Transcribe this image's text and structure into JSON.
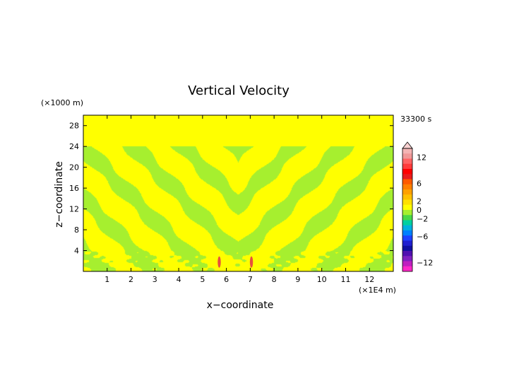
{
  "chart_data": {
    "type": "heatmap",
    "title": "Vertical Velocity",
    "xlabel": "x−coordinate",
    "ylabel": "z−coordinate",
    "x_unit": "(×1E4 m)",
    "y_unit": "(×1000 m)",
    "time_label": "33300 s",
    "xlim": [
      0,
      13
    ],
    "ylim": [
      0,
      30
    ],
    "x_ticks": [
      1,
      2,
      3,
      4,
      5,
      6,
      7,
      8,
      9,
      10,
      11,
      12
    ],
    "y_ticks": [
      4,
      8,
      12,
      16,
      20,
      24,
      28
    ],
    "colorbar": {
      "labels": [
        "12",
        "6",
        "2",
        "0",
        "−2",
        "−6",
        "−12"
      ],
      "label_values": [
        12,
        6,
        2,
        0,
        -2,
        -6,
        -12
      ],
      "colors_top_to_bottom": [
        "#f4b4b4",
        "#f09898",
        "#ff6464",
        "#ff3c3c",
        "#ff0000",
        "#e81c1c",
        "#ff5a00",
        "#ff8000",
        "#ffa000",
        "#ffc000",
        "#ffe000",
        "#ffff00",
        "#a6ef2f",
        "#48d848",
        "#00d0a0",
        "#00b0e0",
        "#0080ff",
        "#1e40ff",
        "#2020d0",
        "#1010a0",
        "#5010b0",
        "#8020c0",
        "#c020c0",
        "#ff28c8"
      ]
    },
    "dominant_colors": {
      "positive_small": "#ffff00",
      "negative_small": "#a6ef2f",
      "updraft_peak": "#e8503c"
    }
  }
}
